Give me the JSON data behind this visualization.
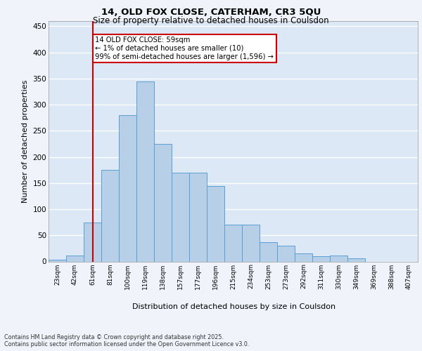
{
  "title1": "14, OLD FOX CLOSE, CATERHAM, CR3 5QU",
  "title2": "Size of property relative to detached houses in Coulsdon",
  "xlabel": "Distribution of detached houses by size in Coulsdon",
  "ylabel": "Number of detached properties",
  "footer1": "Contains HM Land Registry data © Crown copyright and database right 2025.",
  "footer2": "Contains public sector information licensed under the Open Government Licence v3.0.",
  "categories": [
    "23sqm",
    "42sqm",
    "61sqm",
    "81sqm",
    "100sqm",
    "119sqm",
    "138sqm",
    "157sqm",
    "177sqm",
    "196sqm",
    "215sqm",
    "234sqm",
    "253sqm",
    "273sqm",
    "292sqm",
    "311sqm",
    "330sqm",
    "349sqm",
    "369sqm",
    "388sqm",
    "407sqm"
  ],
  "values": [
    3,
    11,
    75,
    175,
    280,
    345,
    225,
    170,
    170,
    145,
    70,
    70,
    37,
    30,
    15,
    10,
    12,
    6,
    0,
    0,
    0
  ],
  "bar_color": "#b8cfe8",
  "bar_edge_color": "#5a9fd4",
  "bg_color": "#dce8f5",
  "grid_color": "#ffffff",
  "vline_x": 2,
  "vline_color": "#cc0000",
  "annotation_text": "14 OLD FOX CLOSE: 59sqm\n← 1% of detached houses are smaller (10)\n99% of semi-detached houses are larger (1,596) →",
  "annotation_box_color": "#cc0000",
  "fig_bg_color": "#f0f4fa",
  "ylim": [
    0,
    460
  ],
  "yticks": [
    0,
    50,
    100,
    150,
    200,
    250,
    300,
    350,
    400,
    450
  ]
}
